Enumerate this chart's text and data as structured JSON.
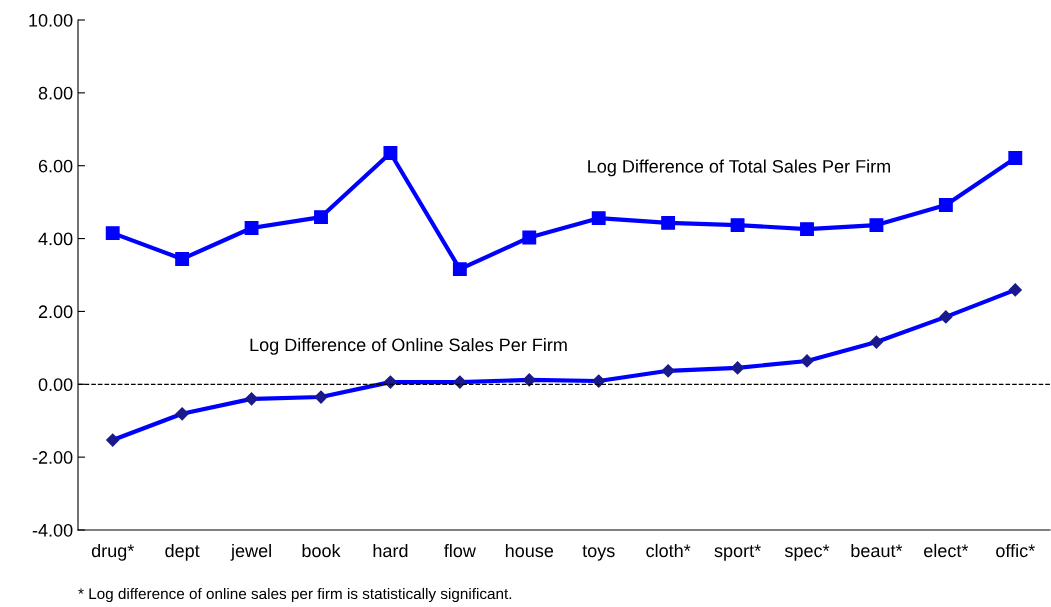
{
  "chart_data": {
    "type": "line",
    "categories": [
      "drug*",
      "dept",
      "jewel",
      "book",
      "hard",
      "flow",
      "house",
      "toys",
      "cloth*",
      "sport*",
      "spec*",
      "beaut*",
      "elect*",
      "offic*"
    ],
    "series": [
      {
        "name": "Log Difference of Total Sales Per Firm",
        "color": "#0000ff",
        "marker": "square",
        "values": [
          4.15,
          3.44,
          4.29,
          4.59,
          6.35,
          3.16,
          4.03,
          4.56,
          4.43,
          4.37,
          4.26,
          4.37,
          4.92,
          6.21
        ]
      },
      {
        "name": "Log Difference of Online Sales Per Firm",
        "color": "#0000ff",
        "marker": "diamond",
        "values": [
          -1.53,
          -0.81,
          -0.4,
          -0.35,
          0.06,
          0.06,
          0.12,
          0.09,
          0.37,
          0.45,
          0.64,
          1.16,
          1.85,
          2.59
        ]
      }
    ],
    "ylim": [
      -4,
      10
    ],
    "yticks": [
      {
        "value": -4,
        "label": "-4.00"
      },
      {
        "value": -2,
        "label": "-2.00"
      },
      {
        "value": 0,
        "label": "0.00"
      },
      {
        "value": 2,
        "label": "2.00"
      },
      {
        "value": 4,
        "label": "4.00"
      },
      {
        "value": 6,
        "label": "6.00"
      },
      {
        "value": 8,
        "label": "8.00"
      },
      {
        "value": 10,
        "label": "10.00"
      }
    ],
    "ref_lines": [
      {
        "axis": "y",
        "value": 0,
        "color": "#000000",
        "line_style": "dashed"
      }
    ],
    "annotations": [
      "* Log difference of online sales per firm is statistically significant."
    ],
    "grid": false,
    "legend": false,
    "line_style": "solid"
  }
}
